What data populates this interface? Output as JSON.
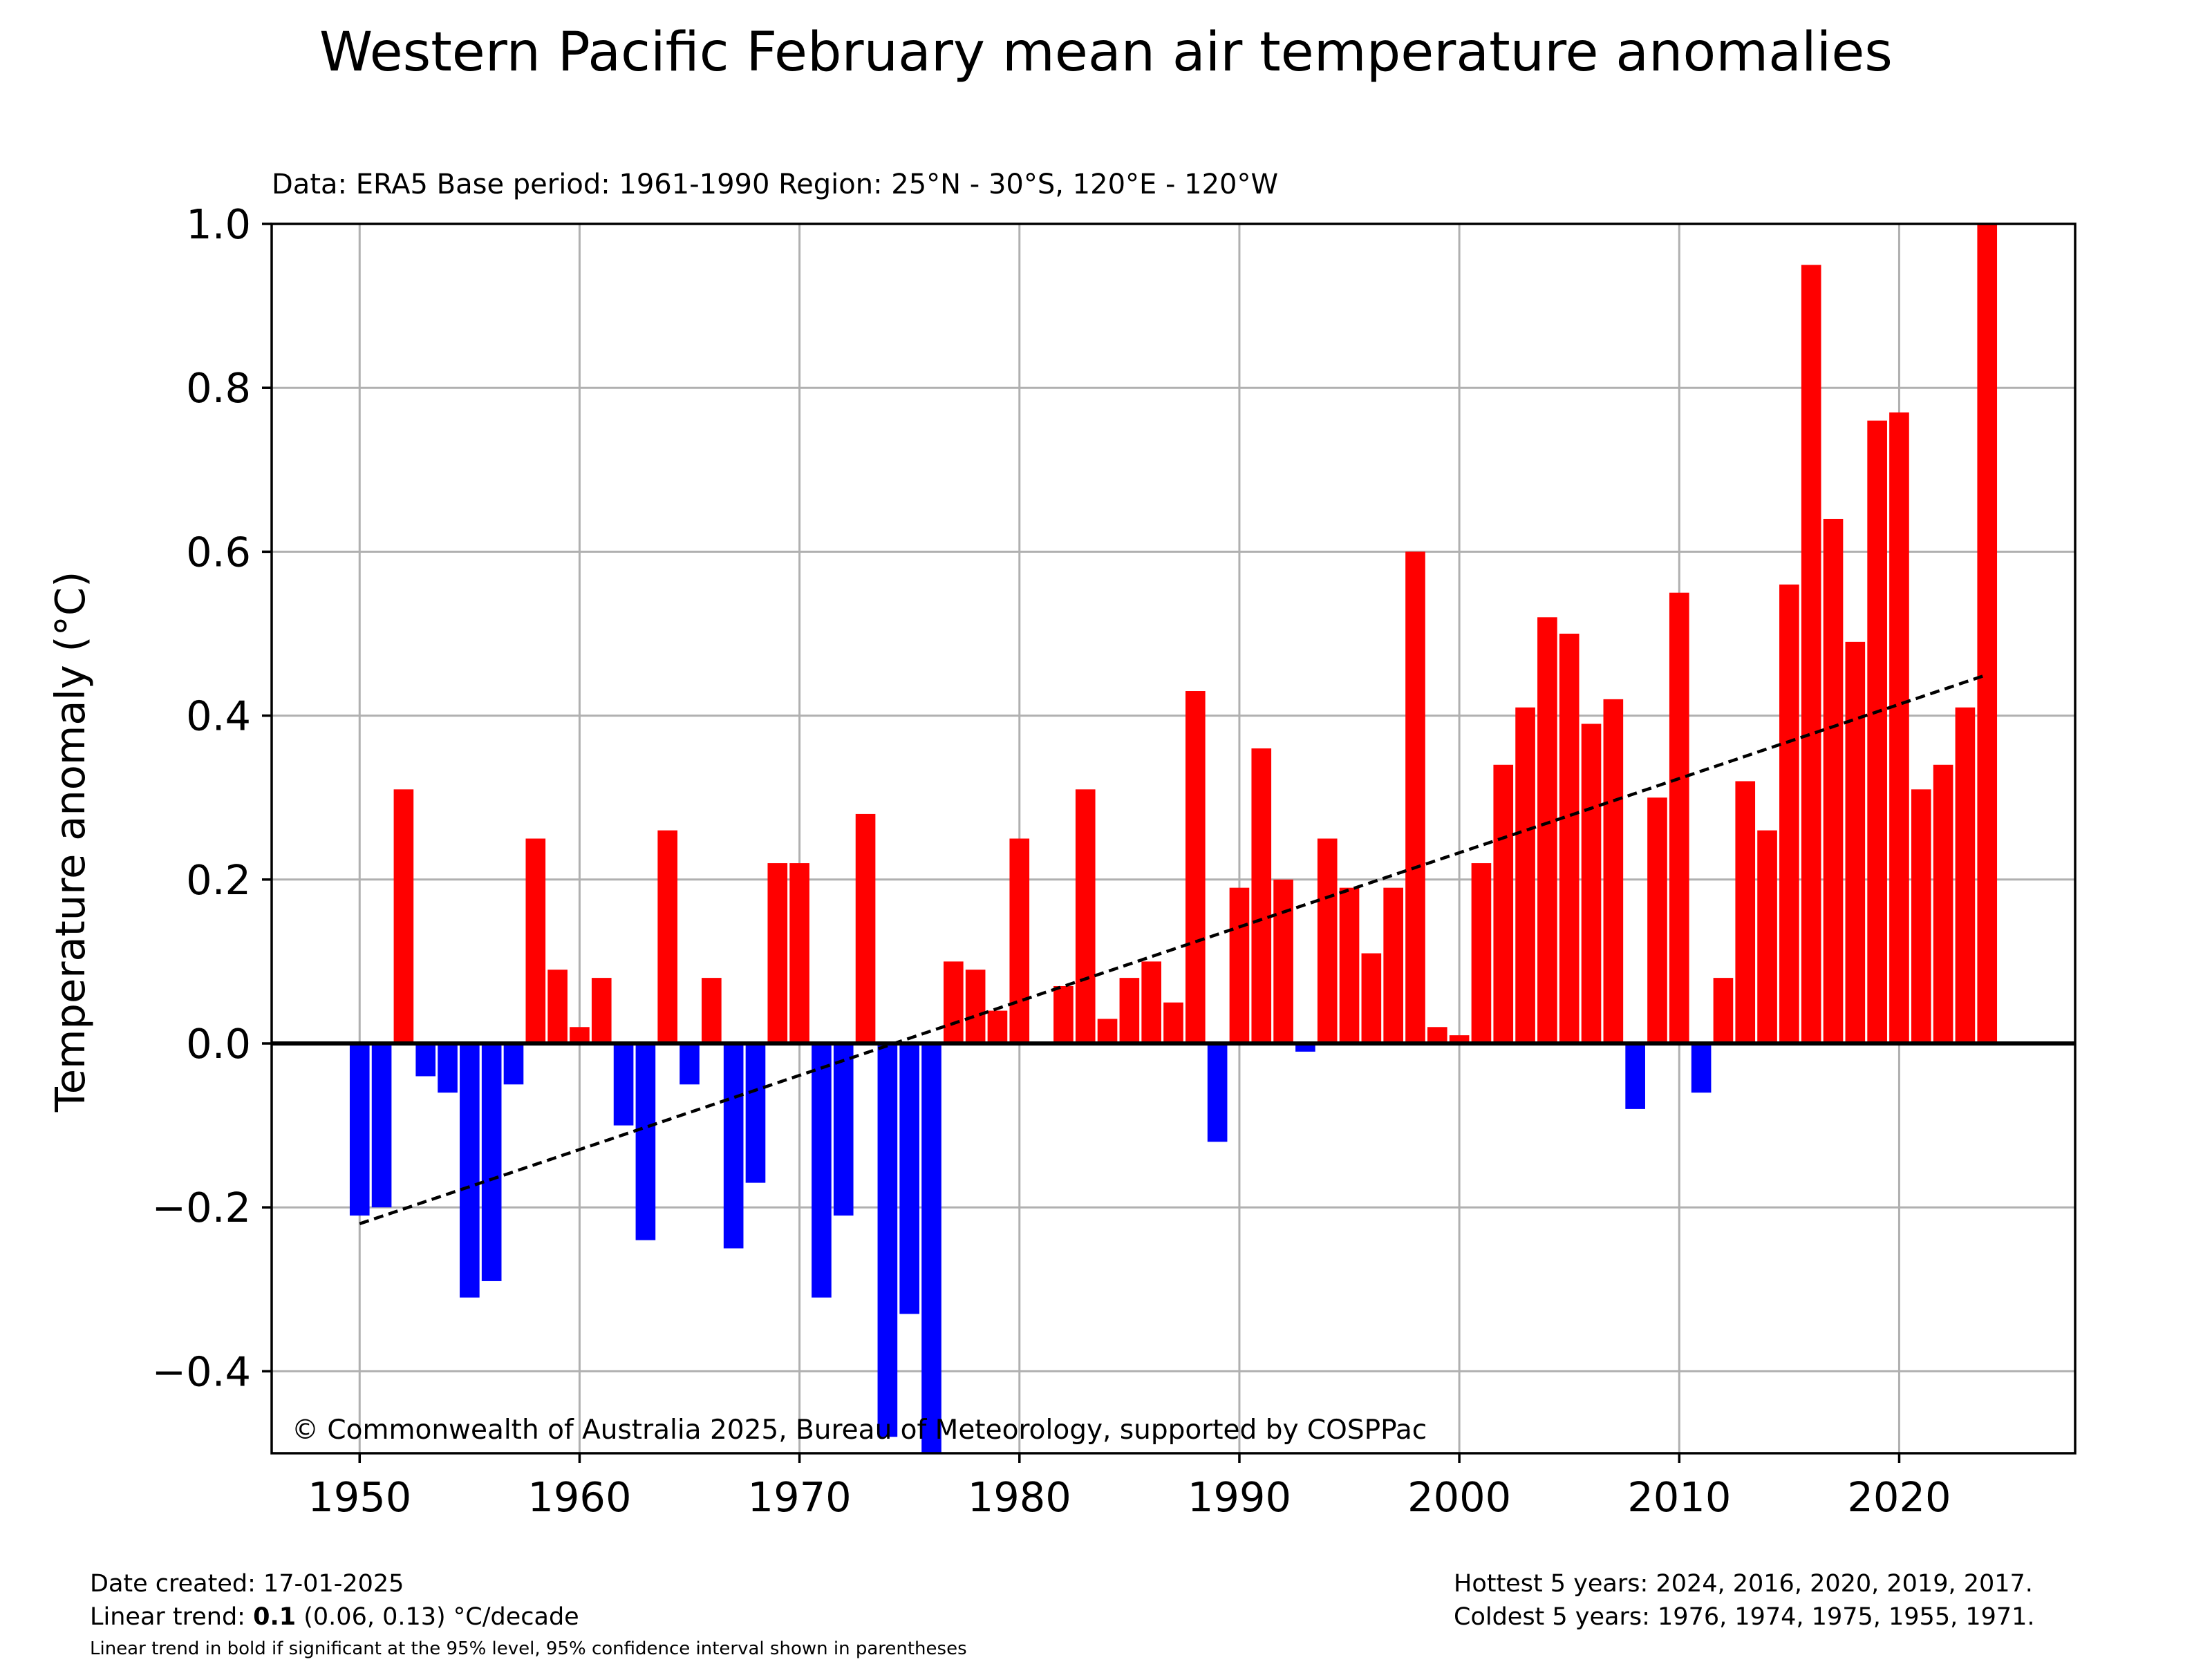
{
  "chart_data": {
    "type": "bar",
    "title": "Western Pacific February mean air temperature anomalies",
    "subtitle": "Data: ERA5  Base period: 1961-1990  Region: 25°N - 30°S, 120°E - 120°W",
    "ylabel": "Temperature anomaly (°C)",
    "xlabel": "",
    "xlim": [
      1946,
      2028
    ],
    "ylim": [
      -0.5,
      1.0
    ],
    "xticks": [
      1950,
      1960,
      1970,
      1980,
      1990,
      2000,
      2010,
      2020
    ],
    "yticks": [
      -0.4,
      -0.2,
      0.0,
      0.2,
      0.4,
      0.6,
      0.8,
      1.0
    ],
    "ytick_labels": [
      "−0.4",
      "−0.2",
      "0.0",
      "0.2",
      "0.4",
      "0.6",
      "0.8",
      "1.0"
    ],
    "grid": true,
    "colors": {
      "positive": "#ff0000",
      "negative": "#0000ff",
      "trend": "#000000",
      "grid": "#b0b0b0"
    },
    "years": [
      1950,
      1951,
      1952,
      1953,
      1954,
      1955,
      1956,
      1957,
      1958,
      1959,
      1960,
      1961,
      1962,
      1963,
      1964,
      1965,
      1966,
      1967,
      1968,
      1969,
      1970,
      1971,
      1972,
      1973,
      1974,
      1975,
      1976,
      1977,
      1978,
      1979,
      1980,
      1981,
      1982,
      1983,
      1984,
      1985,
      1986,
      1987,
      1988,
      1989,
      1990,
      1991,
      1992,
      1993,
      1994,
      1995,
      1996,
      1997,
      1998,
      1999,
      2000,
      2001,
      2002,
      2003,
      2004,
      2005,
      2006,
      2007,
      2008,
      2009,
      2010,
      2011,
      2012,
      2013,
      2014,
      2015,
      2016,
      2017,
      2018,
      2019,
      2020,
      2021,
      2022,
      2023,
      2024
    ],
    "values": [
      -0.21,
      -0.2,
      0.31,
      -0.04,
      -0.06,
      -0.31,
      -0.29,
      -0.05,
      0.25,
      0.09,
      0.02,
      0.08,
      -0.1,
      -0.24,
      0.26,
      -0.05,
      0.08,
      -0.25,
      -0.17,
      0.22,
      0.22,
      -0.31,
      -0.21,
      0.28,
      -0.48,
      -0.33,
      -0.5,
      0.1,
      0.09,
      0.04,
      0.25,
      0.0,
      0.07,
      0.31,
      0.03,
      0.08,
      0.1,
      0.05,
      0.43,
      -0.12,
      0.19,
      0.36,
      0.2,
      -0.01,
      0.25,
      0.19,
      0.11,
      0.19,
      0.6,
      0.02,
      0.01,
      0.22,
      0.34,
      0.41,
      0.52,
      0.5,
      0.39,
      0.42,
      -0.08,
      0.3,
      0.55,
      -0.06,
      0.08,
      0.32,
      0.26,
      0.56,
      0.95,
      0.64,
      0.49,
      0.76,
      0.77,
      0.31,
      0.34,
      0.41,
      1.0
    ],
    "trend": {
      "x": [
        1950,
        2024
      ],
      "y": [
        -0.22,
        0.45
      ]
    },
    "annotation": "© Commonwealth of Australia 2025, Bureau of Meteorology, supported by COSPPac"
  },
  "footer": {
    "date_created": "Date created: 17-01-2025",
    "trend_prefix": "Linear trend: ",
    "trend_value": "0.1",
    "trend_suffix": " (0.06, 0.13) °C/decade",
    "note": "Linear trend in bold if significant at the 95% level, 95% confidence interval shown in parentheses",
    "hottest": "Hottest 5 years: 2024, 2016, 2020, 2019, 2017.",
    "coldest": "Coldest 5 years: 1976, 1974, 1975, 1955, 1971."
  }
}
